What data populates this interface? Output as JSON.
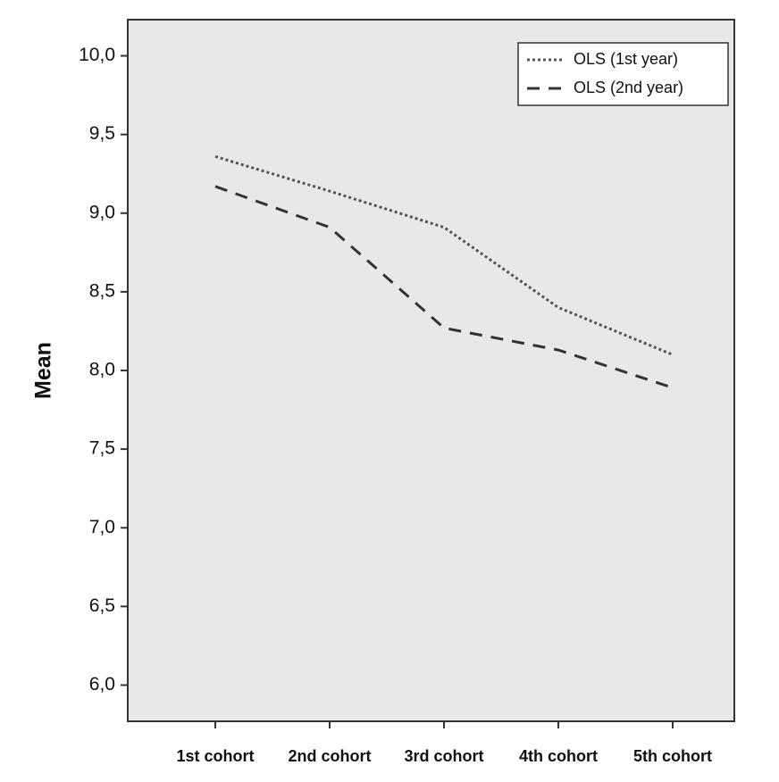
{
  "chart_data": {
    "type": "line",
    "y_label": "Mean",
    "categories": [
      "1st cohort",
      "2nd cohort",
      "3rd cohort",
      "4th cohort",
      "5th cohort"
    ],
    "series": [
      {
        "name": "OLS (1st year)",
        "color": "#555555",
        "style": "dotted",
        "values": [
          9.36,
          9.14,
          8.91,
          8.4,
          8.1
        ]
      },
      {
        "name": "OLS (2nd year)",
        "color": "#333333",
        "style": "dashed",
        "values": [
          9.17,
          8.91,
          8.27,
          8.13,
          7.89
        ]
      }
    ],
    "ylim": [
      5.77,
      10.23
    ],
    "yticks": [
      {
        "value": 6,
        "label": "6,0"
      },
      {
        "value": 6.5,
        "label": "6,5"
      },
      {
        "value": 7,
        "label": "7,0"
      },
      {
        "value": 7.5,
        "label": "7,5"
      },
      {
        "value": 8,
        "label": "8,0"
      },
      {
        "value": 8.5,
        "label": "8,5"
      },
      {
        "value": 9,
        "label": "9,0"
      },
      {
        "value": 9.5,
        "label": "9,5"
      },
      {
        "value": 10,
        "label": "10,0"
      }
    ],
    "legend": "upper right",
    "background": "#e8e8e8"
  }
}
